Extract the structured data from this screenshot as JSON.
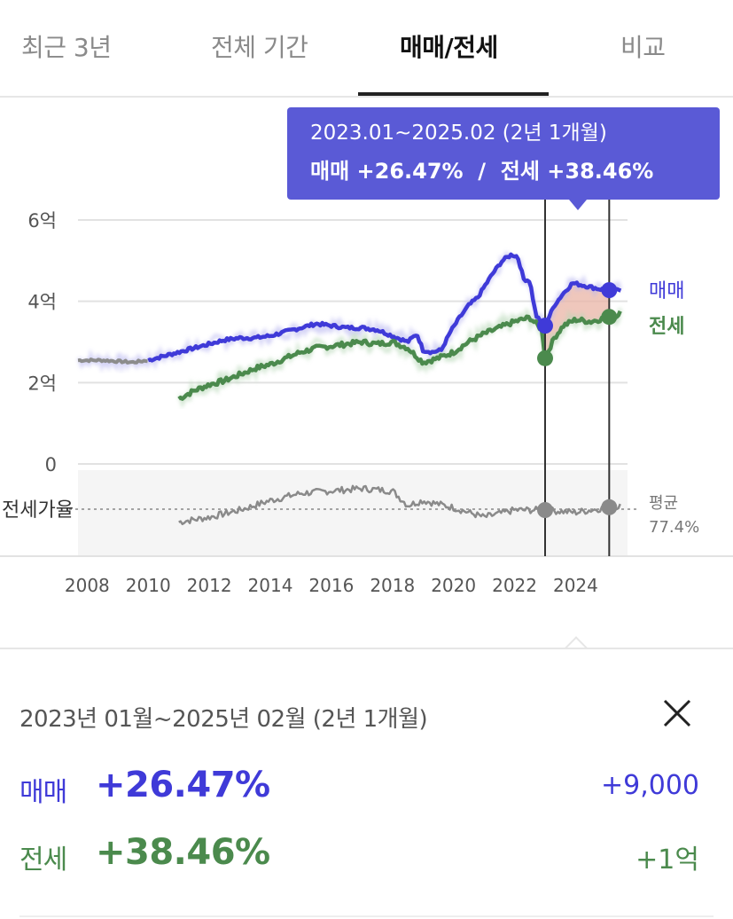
{
  "tabs": [
    {
      "label": "최근 3년",
      "active": false
    },
    {
      "label": "전체 기간",
      "active": false
    },
    {
      "label": "매매/전세",
      "active": true
    },
    {
      "label": "비교",
      "active": false
    }
  ],
  "colors": {
    "sale": "#3f3ad8",
    "jeonse": "#4b8a4d",
    "ratio": "#8a8a8a",
    "highlight": "#e9b4a6",
    "tooltip_bg": "#5a5ad6"
  },
  "tooltip": {
    "range": "2023.01~2025.02 (2년 1개월)",
    "changes": "매매 +26.47%  /  전세 +38.46%"
  },
  "chart_data": {
    "type": "line",
    "x_tick_labels": [
      "2008",
      "2010",
      "2012",
      "2014",
      "2016",
      "2018",
      "2020",
      "2022",
      "2024"
    ],
    "x_range": [
      2007.7,
      2025.7
    ],
    "y_tick_labels": [
      "6억",
      "4억",
      "2억",
      "0"
    ],
    "y_range_eok": [
      0,
      6
    ],
    "grid": true,
    "series": [
      {
        "name": "매매",
        "unit": "억",
        "x": [
          2007.7,
          2008.5,
          2009.5,
          2010.0,
          2010.5,
          2011.0,
          2011.5,
          2012.0,
          2012.5,
          2013.0,
          2013.5,
          2014.0,
          2014.5,
          2015.0,
          2015.5,
          2016.0,
          2016.5,
          2017.0,
          2017.5,
          2018.0,
          2018.5,
          2018.8,
          2019.0,
          2019.3,
          2019.6,
          2019.9,
          2020.2,
          2020.5,
          2020.8,
          2021.0,
          2021.3,
          2021.6,
          2021.9,
          2022.1,
          2022.3,
          2022.5,
          2022.7,
          2022.9,
          2023.0,
          2023.3,
          2023.6,
          2023.9,
          2024.2,
          2024.5,
          2024.8,
          2025.0,
          2025.2,
          2025.5
        ],
        "y": [
          2.55,
          2.55,
          2.5,
          2.55,
          2.65,
          2.75,
          2.85,
          2.95,
          3.05,
          3.1,
          3.1,
          3.15,
          3.25,
          3.35,
          3.45,
          3.4,
          3.35,
          3.35,
          3.3,
          3.15,
          3.0,
          3.2,
          2.8,
          2.75,
          2.8,
          3.25,
          3.6,
          3.9,
          4.1,
          4.35,
          4.7,
          5.0,
          5.15,
          5.1,
          4.55,
          4.5,
          3.65,
          3.45,
          3.4,
          3.9,
          4.2,
          4.45,
          4.4,
          4.35,
          4.3,
          4.3,
          4.25,
          4.3
        ]
      },
      {
        "name": "전세",
        "unit": "억",
        "x": [
          2011.0,
          2011.5,
          2012.0,
          2012.5,
          2013.0,
          2013.5,
          2014.0,
          2014.5,
          2015.0,
          2015.5,
          2016.0,
          2016.5,
          2017.0,
          2017.5,
          2018.0,
          2018.5,
          2019.0,
          2019.5,
          2020.0,
          2020.5,
          2021.0,
          2021.5,
          2022.0,
          2022.5,
          2022.9,
          2023.0,
          2023.3,
          2023.6,
          2024.0,
          2024.5,
          2025.0,
          2025.3,
          2025.5
        ],
        "y": [
          1.6,
          1.8,
          1.95,
          2.05,
          2.2,
          2.35,
          2.45,
          2.6,
          2.75,
          2.85,
          2.9,
          2.95,
          3.0,
          2.95,
          3.0,
          2.85,
          2.5,
          2.6,
          2.75,
          3.0,
          3.2,
          3.35,
          3.5,
          3.6,
          3.3,
          2.6,
          3.1,
          3.4,
          3.55,
          3.5,
          3.6,
          3.65,
          3.75
        ]
      },
      {
        "name": "전세가율",
        "x": [
          2011.0,
          2012.0,
          2013.0,
          2014.0,
          2015.0,
          2016.0,
          2017.0,
          2018.0,
          2018.5,
          2019.0,
          2020.0,
          2021.0,
          2022.0,
          2023.0,
          2024.0,
          2025.0,
          2025.5
        ],
        "y": [
          0.25,
          0.35,
          0.5,
          0.7,
          0.85,
          0.9,
          0.95,
          0.9,
          0.6,
          0.7,
          0.55,
          0.35,
          0.5,
          0.5,
          0.45,
          0.55,
          0.6
        ]
      }
    ],
    "series_labels": [
      "매매",
      "전세"
    ],
    "ratio_label": "전세가율",
    "average_label": "평균",
    "average_value": "77.4%",
    "selection": {
      "start": 2023.0,
      "end": 2025.1
    }
  },
  "panel": {
    "range": "2023년 01월~2025년 02월 (2년 1개월)",
    "rows": [
      {
        "label": "매매",
        "percent": "+26.47%",
        "amount": "+9,000"
      },
      {
        "label": "전세",
        "percent": "+38.46%",
        "amount": "+1억"
      }
    ]
  }
}
